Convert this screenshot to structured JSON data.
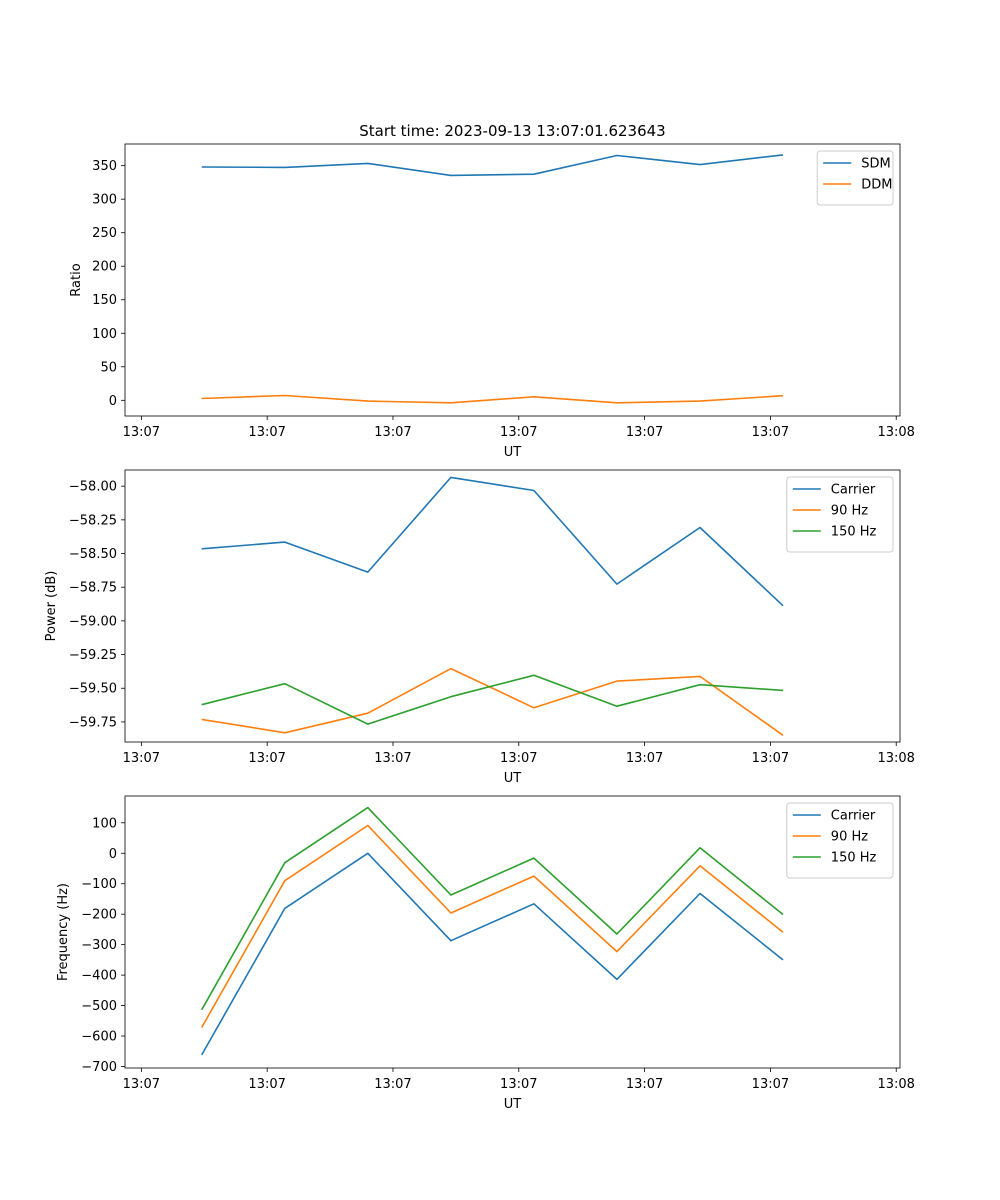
{
  "figure_title": "Start time: 2023-09-13 13:07:01.623643",
  "colors": {
    "blue": "#1f77b4",
    "orange": "#ff7f0e",
    "green": "#2ca02c"
  },
  "chart_data": [
    {
      "type": "line",
      "id": "ratio",
      "xlabel": "UT",
      "ylabel": "Ratio",
      "x_tick_labels": [
        "13:07",
        "13:07",
        "13:07",
        "13:07",
        "13:07",
        "13:07",
        "13:08"
      ],
      "x_ticks": [
        0,
        1,
        2,
        3,
        4,
        5,
        6
      ],
      "xlim": [
        -0.13,
        6.03
      ],
      "x": [
        0.48,
        1.14,
        1.8,
        2.46,
        3.12,
        3.78,
        4.44,
        5.1
      ],
      "ylim": [
        -23.4,
        382.3
      ],
      "y_ticks": [
        0,
        50,
        100,
        150,
        200,
        250,
        300,
        350
      ],
      "y_tick_labels": [
        "0",
        "50",
        "100",
        "150",
        "200",
        "250",
        "300",
        "350"
      ],
      "legend_position": "top-right",
      "series": [
        {
          "name": "SDM",
          "color": "#1f77b4",
          "values": [
            348,
            347.4,
            353.4,
            335.4,
            337.2,
            365.1,
            351.5,
            366.1
          ]
        },
        {
          "name": "DDM",
          "color": "#ff7f0e",
          "values": [
            2.7,
            7.2,
            -1.2,
            -3.7,
            5.2,
            -3.7,
            -1.2,
            6.9
          ]
        }
      ]
    },
    {
      "type": "line",
      "id": "power",
      "xlabel": "UT",
      "ylabel": "Power (dB)",
      "x_tick_labels": [
        "13:07",
        "13:07",
        "13:07",
        "13:07",
        "13:07",
        "13:07",
        "13:08"
      ],
      "x_ticks": [
        0,
        1,
        2,
        3,
        4,
        5,
        6
      ],
      "xlim": [
        -0.13,
        6.03
      ],
      "x": [
        0.48,
        1.14,
        1.8,
        2.46,
        3.12,
        3.78,
        4.44,
        5.1
      ],
      "ylim": [
        -59.899,
        -57.88
      ],
      "y_ticks": [
        -59.75,
        -59.5,
        -59.25,
        -59.0,
        -58.75,
        -58.5,
        -58.25,
        -58.0
      ],
      "y_tick_labels": [
        "−59.75",
        "−59.50",
        "−59.25",
        "−59.00",
        "−58.75",
        "−58.50",
        "−58.25",
        "−58.00"
      ],
      "legend_position": "top-right",
      "series": [
        {
          "name": "Carrier",
          "color": "#1f77b4",
          "values": [
            -58.465,
            -58.415,
            -58.638,
            -57.935,
            -58.032,
            -58.727,
            -58.307,
            -58.887
          ]
        },
        {
          "name": "90 Hz",
          "color": "#ff7f0e",
          "values": [
            -59.731,
            -59.831,
            -59.685,
            -59.354,
            -59.645,
            -59.447,
            -59.412,
            -59.849
          ]
        },
        {
          "name": "150 Hz",
          "color": "#2ca02c",
          "values": [
            -59.622,
            -59.466,
            -59.766,
            -59.563,
            -59.404,
            -59.633,
            -59.474,
            -59.516
          ]
        }
      ]
    },
    {
      "type": "line",
      "id": "frequency",
      "xlabel": "UT",
      "ylabel": "Frequency (Hz)",
      "x_tick_labels": [
        "13:07",
        "13:07",
        "13:07",
        "13:07",
        "13:07",
        "13:07",
        "13:08"
      ],
      "x_ticks": [
        0,
        1,
        2,
        3,
        4,
        5,
        6
      ],
      "xlim": [
        -0.13,
        6.03
      ],
      "x": [
        0.48,
        1.14,
        1.8,
        2.46,
        3.12,
        3.78,
        4.44,
        5.1
      ],
      "ylim": [
        -705,
        188
      ],
      "y_ticks": [
        -700,
        -600,
        -500,
        -400,
        -300,
        -200,
        -100,
        0,
        100
      ],
      "y_tick_labels": [
        "−700",
        "−600",
        "−500",
        "−400",
        "−300",
        "−200",
        "−100",
        "0",
        "100"
      ],
      "legend_position": "top-right",
      "series": [
        {
          "name": "Carrier",
          "color": "#1f77b4",
          "values": [
            -662,
            -181,
            0,
            -287,
            -166,
            -414,
            -132,
            -350
          ]
        },
        {
          "name": "90 Hz",
          "color": "#ff7f0e",
          "values": [
            -572,
            -90,
            91,
            -196,
            -75,
            -323,
            -41,
            -259
          ]
        },
        {
          "name": "150 Hz",
          "color": "#2ca02c",
          "values": [
            -514,
            -31,
            150,
            -137,
            -16,
            -265,
            18,
            -201
          ]
        }
      ]
    }
  ]
}
